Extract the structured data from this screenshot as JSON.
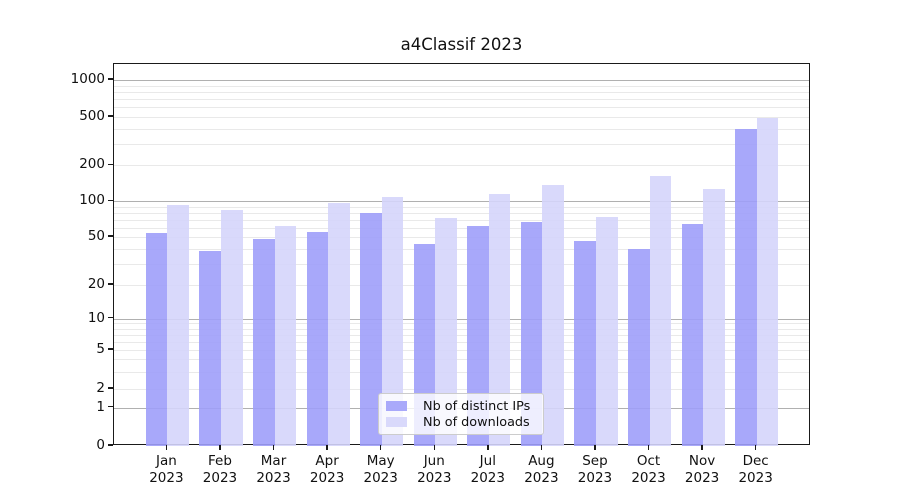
{
  "title": "a4Classif 2023",
  "colors": {
    "ips_bar": "rgba(159,159,249,0.9)",
    "downloads_bar": "rgba(213,213,251,0.9)",
    "ips_swatch": "#a9a9fa",
    "downloads_swatch": "#d9d9fb",
    "grid_major": "#b0b0b0",
    "grid_minor": "#e9e9e9",
    "axis": "#1a1a1a"
  },
  "legend": {
    "items": [
      {
        "key": "ips",
        "label": "Nb of distinct IPs"
      },
      {
        "key": "downloads",
        "label": "Nb of downloads"
      }
    ]
  },
  "x_axis": {
    "months": [
      "Jan",
      "Feb",
      "Mar",
      "Apr",
      "May",
      "Jun",
      "Jul",
      "Aug",
      "Sep",
      "Oct",
      "Nov",
      "Dec"
    ],
    "year": "2023"
  },
  "y_axis": {
    "ticks": [
      0,
      1,
      2,
      5,
      10,
      20,
      50,
      100,
      200,
      500,
      1000
    ]
  },
  "chart_data": {
    "type": "bar",
    "title": "a4Classif 2023",
    "categories": [
      "Jan 2023",
      "Feb 2023",
      "Mar 2023",
      "Apr 2023",
      "May 2023",
      "Jun 2023",
      "Jul 2023",
      "Aug 2023",
      "Sep 2023",
      "Oct 2023",
      "Nov 2023",
      "Dec 2023"
    ],
    "series": [
      {
        "name": "Nb of distinct IPs",
        "values": [
          54,
          38,
          48,
          55,
          80,
          44,
          62,
          67,
          46,
          40,
          64,
          395
        ]
      },
      {
        "name": "Nb of downloads",
        "values": [
          93,
          85,
          62,
          97,
          109,
          73,
          115,
          138,
          74,
          162,
          127,
          487
        ]
      }
    ],
    "xlabel": "",
    "ylabel": "",
    "yscale": "symlog",
    "yticks": [
      0,
      1,
      2,
      5,
      10,
      20,
      50,
      100,
      200,
      500,
      1000
    ],
    "ylim": [
      0,
      1400
    ],
    "grid": true,
    "legend_position": "lower center"
  }
}
